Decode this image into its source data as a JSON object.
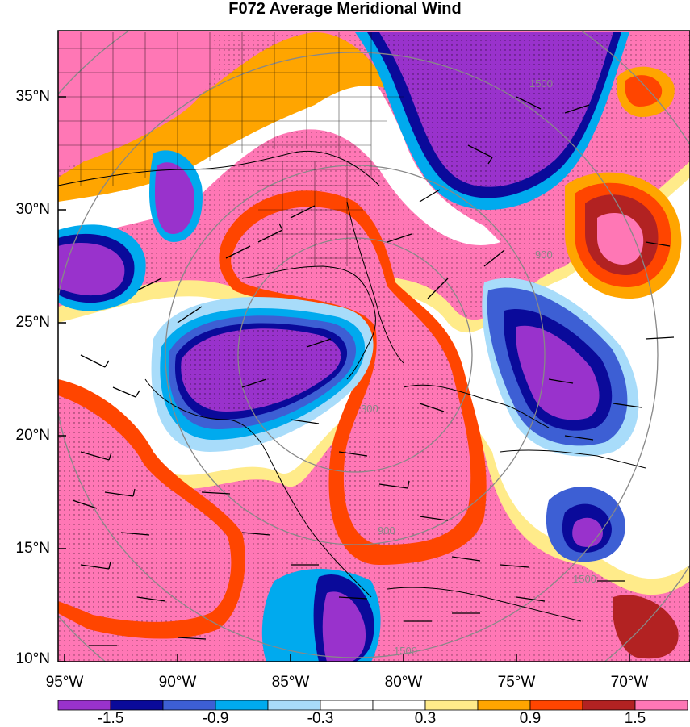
{
  "title": "F072 Average Meridional Wind",
  "lat_labels": [
    "35°N",
    "30°N",
    "25°N",
    "20°N",
    "15°N",
    "10°N"
  ],
  "lon_labels": [
    "95°W",
    "90°W",
    "85°W",
    "80°W",
    "75°W",
    "70°W"
  ],
  "range_ring_labels": [
    "300",
    "900",
    "1500"
  ],
  "colorbar": {
    "tick_labels": [
      "-1.5",
      "-0.9",
      "-0.3",
      "0.3",
      "0.9",
      "1.5"
    ],
    "colors": [
      "#9932cc",
      "#0a0a9a",
      "#3d5fd4",
      "#00aaee",
      "#a8dcfa",
      "#ffffff",
      "#ffffff",
      "#ffeb8a",
      "#ffa500",
      "#ff4500",
      "#b22222",
      "#ff77b5"
    ]
  }
}
